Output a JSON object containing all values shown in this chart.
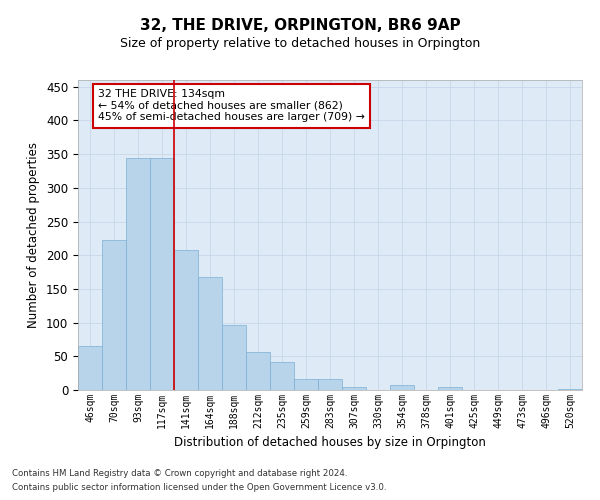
{
  "title": "32, THE DRIVE, ORPINGTON, BR6 9AP",
  "subtitle": "Size of property relative to detached houses in Orpington",
  "xlabel": "Distribution of detached houses by size in Orpington",
  "ylabel": "Number of detached properties",
  "categories": [
    "46sqm",
    "70sqm",
    "93sqm",
    "117sqm",
    "141sqm",
    "164sqm",
    "188sqm",
    "212sqm",
    "235sqm",
    "259sqm",
    "283sqm",
    "307sqm",
    "330sqm",
    "354sqm",
    "378sqm",
    "401sqm",
    "425sqm",
    "449sqm",
    "473sqm",
    "496sqm",
    "520sqm"
  ],
  "values": [
    65,
    222,
    345,
    345,
    208,
    168,
    97,
    57,
    42,
    16,
    16,
    5,
    0,
    7,
    0,
    4,
    0,
    0,
    0,
    0,
    2
  ],
  "bar_color": "#b8d4ea",
  "bar_edge_color": "#7aafd4",
  "vline_x": 3.5,
  "annotation_text": "32 THE DRIVE: 134sqm\n← 54% of detached houses are smaller (862)\n45% of semi-detached houses are larger (709) →",
  "annotation_box_color": "#ffffff",
  "annotation_box_edge_color": "#cc0000",
  "vline_color": "#cc0000",
  "grid_color": "#c8d8e8",
  "background_color": "#deeaf5",
  "footer_line1": "Contains HM Land Registry data © Crown copyright and database right 2024.",
  "footer_line2": "Contains public sector information licensed under the Open Government Licence v3.0.",
  "ylim": [
    0,
    460
  ],
  "yticks": [
    0,
    50,
    100,
    150,
    200,
    250,
    300,
    350,
    400,
    450
  ],
  "title_fontsize": 11,
  "subtitle_fontsize": 9
}
